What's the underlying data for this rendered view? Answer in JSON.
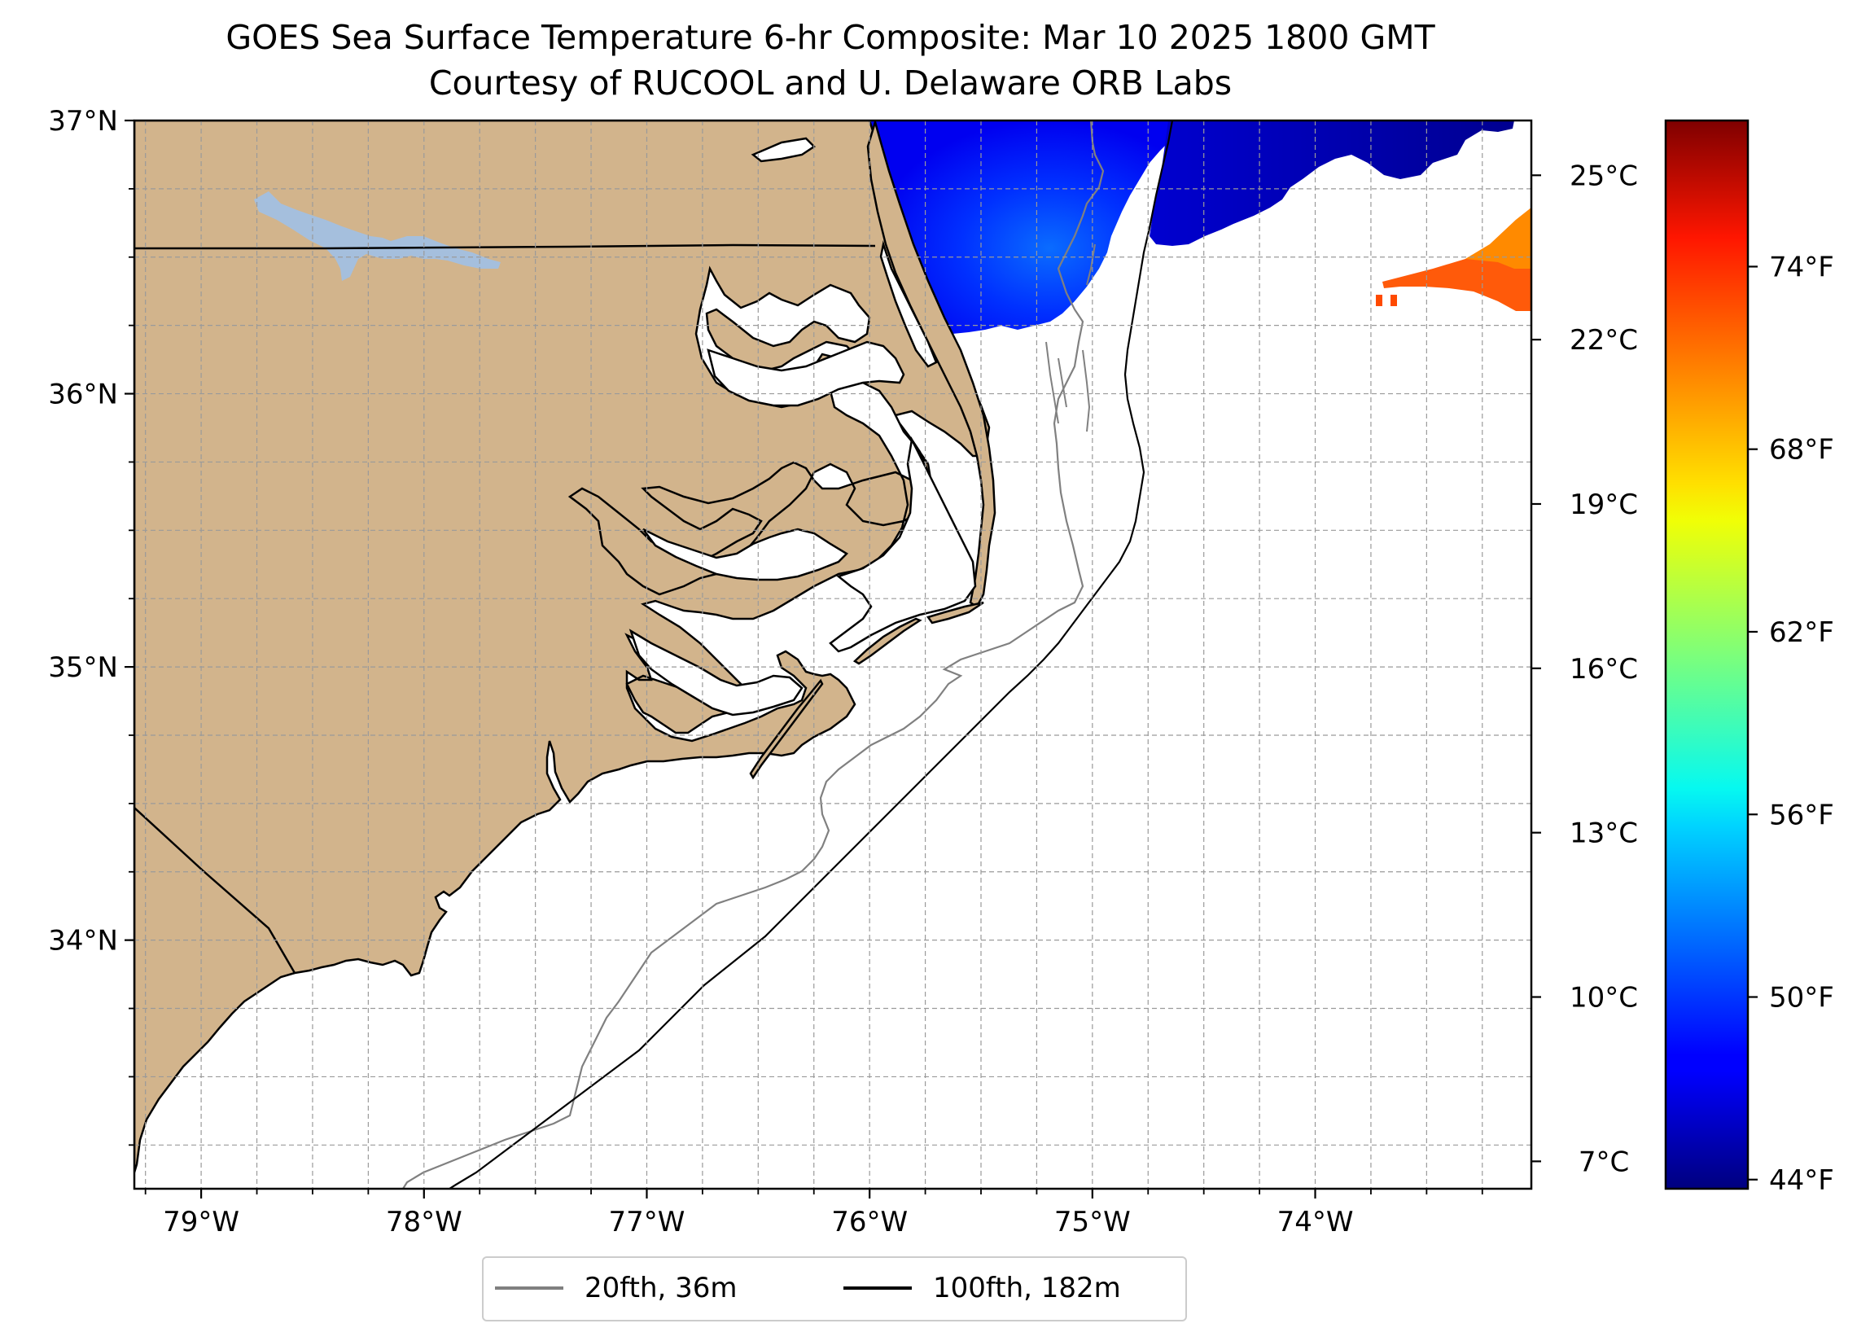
{
  "title": {
    "line1": "GOES Sea Surface Temperature 6-hr Composite: Mar 10 2025 1800 GMT",
    "line2": "Courtesy of RUCOOL and U. Delaware ORB Labs"
  },
  "map": {
    "extent": {
      "lon_min": -79.3,
      "lon_max": -73.03,
      "lat_min": 33.09,
      "lat_max": 37.0
    },
    "lat_ticks": [
      {
        "value": 37,
        "label": "37°N"
      },
      {
        "value": 36,
        "label": "36°N"
      },
      {
        "value": 35,
        "label": "35°N"
      },
      {
        "value": 34,
        "label": "34°N"
      }
    ],
    "lon_ticks": [
      {
        "value": -79,
        "label": "79°W"
      },
      {
        "value": -78,
        "label": "78°W"
      },
      {
        "value": -77,
        "label": "77°W"
      },
      {
        "value": -76,
        "label": "76°W"
      },
      {
        "value": -75,
        "label": "75°W"
      },
      {
        "value": -74,
        "label": "74°W"
      }
    ],
    "grid": "dashed, every 0.25°",
    "colors": {
      "land": "#d2b48c",
      "lake": "#a5bfdd",
      "ocean_no_data": "#ffffff",
      "isobath_20fth": "#808080",
      "isobath_100fth": "#000000"
    }
  },
  "colorbar": {
    "colormap": "jet",
    "range_c": [
      6.5,
      26.0
    ],
    "celsius_ticks": [
      {
        "value": 25,
        "label": "25°C"
      },
      {
        "value": 22,
        "label": "22°C"
      },
      {
        "value": 19,
        "label": "19°C"
      },
      {
        "value": 16,
        "label": "16°C"
      },
      {
        "value": 13,
        "label": "13°C"
      },
      {
        "value": 10,
        "label": "10°C"
      },
      {
        "value": 7,
        "label": "7°C"
      }
    ],
    "fahrenheit_ticks": [
      {
        "value_c": 23.333,
        "label": "74°F"
      },
      {
        "value_c": 20.0,
        "label": "68°F"
      },
      {
        "value_c": 16.667,
        "label": "62°F"
      },
      {
        "value_c": 13.333,
        "label": "56°F"
      },
      {
        "value_c": 10.0,
        "label": "50°F"
      },
      {
        "value_c": 6.667,
        "label": "44°F"
      }
    ]
  },
  "legend": {
    "items": [
      {
        "label": "20fth, 36m",
        "color": "#808080"
      },
      {
        "label": "100fth, 182m",
        "color": "#000000"
      }
    ]
  }
}
